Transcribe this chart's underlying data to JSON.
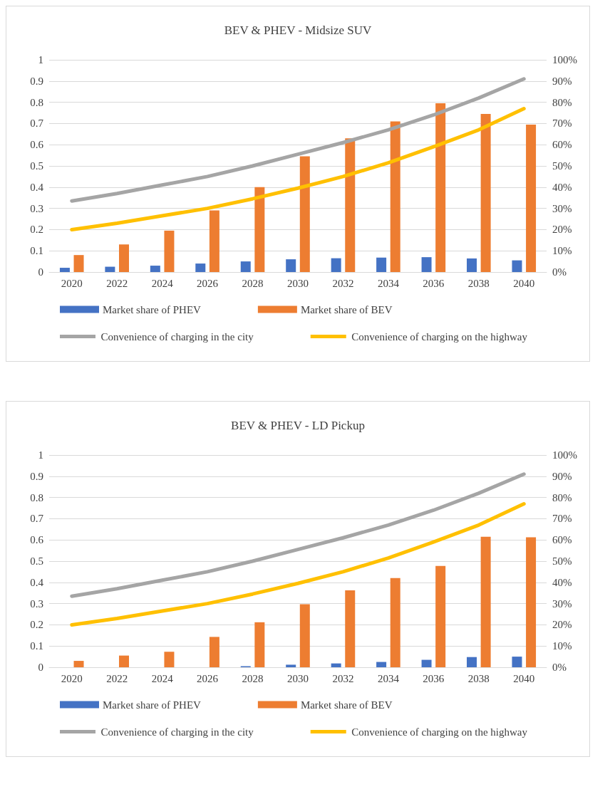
{
  "chart_data": [
    {
      "type": "bar",
      "title": "BEV & PHEV - Midsize SUV",
      "categories": [
        "2020",
        "2022",
        "2024",
        "2026",
        "2028",
        "2030",
        "2032",
        "2034",
        "2036",
        "2038",
        "2040"
      ],
      "series": [
        {
          "name": "Market share of PHEV",
          "color": "#4472c4",
          "values": [
            0.02,
            0.025,
            0.03,
            0.04,
            0.05,
            0.06,
            0.065,
            0.068,
            0.07,
            0.064,
            0.055
          ]
        },
        {
          "name": "Market share of BEV",
          "color": "#ed7d31",
          "values": [
            0.08,
            0.13,
            0.195,
            0.29,
            0.4,
            0.545,
            0.63,
            0.71,
            0.795,
            0.745,
            0.695
          ]
        },
        {
          "name": "Convenience of charging in the city",
          "type": "line",
          "axis": "y2",
          "color": "#a5a5a5",
          "values": [
            33.5,
            37,
            41,
            45,
            50,
            55.5,
            61,
            67,
            74,
            82,
            91
          ]
        },
        {
          "name": "Convenience of charging on the highway",
          "type": "line",
          "axis": "y2",
          "color": "#ffc000",
          "values": [
            20,
            23,
            26.5,
            30,
            34.5,
            39.5,
            45,
            51.5,
            59,
            67,
            77
          ]
        }
      ],
      "ylim": [
        0,
        1
      ],
      "yticks": [
        0,
        0.1,
        0.2,
        0.3,
        0.4,
        0.5,
        0.6,
        0.7,
        0.8,
        0.9,
        1
      ],
      "y2lim": [
        0,
        100
      ],
      "y2ticks": [
        {
          "value": 0,
          "label": "0%"
        },
        {
          "value": 10,
          "label": "10%"
        },
        {
          "value": 20,
          "label": "20%"
        },
        {
          "value": 30,
          "label": "30%"
        },
        {
          "value": 40,
          "label": "40%"
        },
        {
          "value": 50,
          "label": "50%"
        },
        {
          "value": 60,
          "label": "60%"
        },
        {
          "value": 70,
          "label": "70%"
        },
        {
          "value": 80,
          "label": "80%"
        },
        {
          "value": 90,
          "label": "90%"
        },
        {
          "value": 100,
          "label": "100%"
        }
      ],
      "grid": "y",
      "legend": "bottom",
      "marker": "none",
      "line_style": "solid"
    },
    {
      "type": "bar",
      "title": "BEV & PHEV - LD Pickup",
      "categories": [
        "2020",
        "2022",
        "2024",
        "2026",
        "2028",
        "2030",
        "2032",
        "2034",
        "2036",
        "2038",
        "2040"
      ],
      "series": [
        {
          "name": "Market share of PHEV",
          "color": "#4472c4",
          "values": [
            0,
            0,
            0,
            null,
            0.005,
            0.012,
            0.018,
            0.025,
            0.035,
            0.048,
            0.05
          ]
        },
        {
          "name": "Market share of BEV",
          "color": "#ed7d31",
          "values": [
            0.03,
            0.055,
            0.073,
            0.143,
            0.212,
            0.297,
            0.362,
            0.42,
            0.477,
            0.615,
            0.612
          ]
        },
        {
          "name": "Convenience of charging in the city",
          "type": "line",
          "axis": "y2",
          "color": "#a5a5a5",
          "values": [
            33.5,
            37,
            41,
            45,
            50,
            55.5,
            61,
            67,
            74,
            82,
            91
          ]
        },
        {
          "name": "Convenience of charging on the highway",
          "type": "line",
          "axis": "y2",
          "color": "#ffc000",
          "values": [
            20,
            23,
            26.5,
            30,
            34.5,
            39.5,
            45,
            51.5,
            59,
            67,
            77
          ]
        }
      ],
      "ylim": [
        0,
        1
      ],
      "yticks": [
        0,
        0.1,
        0.2,
        0.3,
        0.4,
        0.5,
        0.6,
        0.7,
        0.8,
        0.9,
        1
      ],
      "y2lim": [
        0,
        100
      ],
      "y2ticks": [
        {
          "value": 0,
          "label": "0%"
        },
        {
          "value": 10,
          "label": "10%"
        },
        {
          "value": 20,
          "label": "20%"
        },
        {
          "value": 30,
          "label": "30%"
        },
        {
          "value": 40,
          "label": "40%"
        },
        {
          "value": 50,
          "label": "50%"
        },
        {
          "value": 60,
          "label": "60%"
        },
        {
          "value": 70,
          "label": "70%"
        },
        {
          "value": 80,
          "label": "80%"
        },
        {
          "value": 90,
          "label": "90%"
        },
        {
          "value": 100,
          "label": "100%"
        }
      ],
      "grid": "y",
      "legend": "bottom",
      "marker": "none",
      "line_style": "solid"
    }
  ]
}
